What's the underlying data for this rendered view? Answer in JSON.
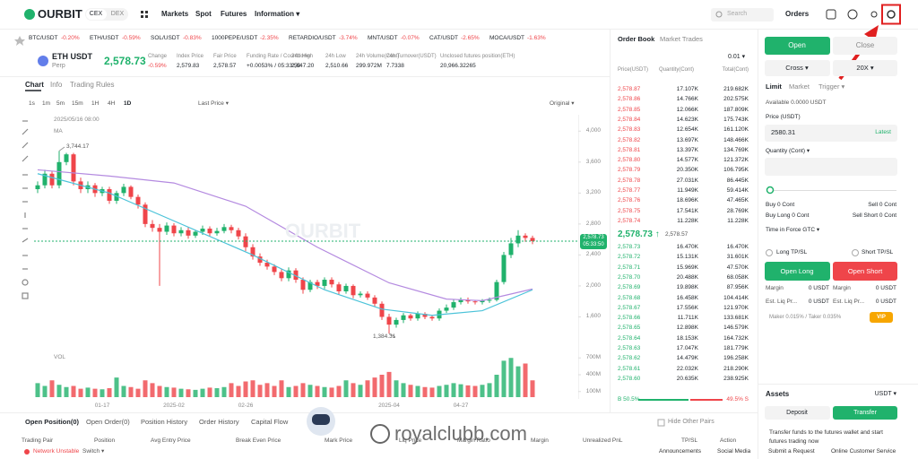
{
  "nav": {
    "logo": "OURBIT",
    "cex": "CEX",
    "dex": "DEX",
    "menu": [
      "Markets",
      "Spot",
      "Futures",
      "Information ▾"
    ],
    "search": "Search",
    "orders": "Orders"
  },
  "tickers": [
    {
      "pair": "BTC/USDT",
      "change": "-0.20%"
    },
    {
      "pair": "ETH/USDT",
      "change": "-0.59%"
    },
    {
      "pair": "SOL/USDT",
      "change": "-0.83%"
    },
    {
      "pair": "1000PEPE/USDT",
      "change": "-2.35%"
    },
    {
      "pair": "RETARDIO/USDT",
      "change": "-3.74%"
    },
    {
      "pair": "MNT/USDT",
      "change": "-0.07%"
    },
    {
      "pair": "CAT/USDT",
      "change": "-2.65%"
    },
    {
      "pair": "MOCA/USDT",
      "change": "-1.63%"
    }
  ],
  "symbol": {
    "name": "ETH USDT",
    "sub": "Perp",
    "price": "2,578.73",
    "stats": [
      {
        "label": "Change",
        "value": "-0.59%"
      },
      {
        "label": "Index Price",
        "value": "2,579.83"
      },
      {
        "label": "Fair Price",
        "value": "2,578.57"
      },
      {
        "label": "Funding Rate / Countdown",
        "value": "+0.0053% / 05:33:50"
      },
      {
        "label": "24h High",
        "value": "2,647.20"
      },
      {
        "label": "24h Low",
        "value": "2,510.66"
      },
      {
        "label": "24h Volume(Cont)",
        "value": "299.972M"
      },
      {
        "label": "24h Turnover(USDT)",
        "value": "7.7338"
      },
      {
        "label": "Unclosed futures position(ETH)",
        "value": "20,966.32265"
      }
    ]
  },
  "chart_tabs": [
    "Chart",
    "Info",
    "Trading Rules"
  ],
  "intervals": [
    "1s",
    "1m",
    "5m",
    "15m",
    "1H",
    "4H",
    "1D"
  ],
  "price_type": "Last Price ▾",
  "view_mode": "Original ▾",
  "chart_data": {
    "type": "candlestick",
    "watermark": "OURBIT",
    "annotations": {
      "date": "2025/05/16 08:00",
      "ma": "MA",
      "high_label": "3,744.17",
      "low_label": "1,384.31",
      "vol": "VOL",
      "last_price": "2,578.73",
      "countdown": "05:33:50"
    },
    "up_color": "#20b26c",
    "down_color": "#ef454a",
    "categories": [
      null,
      null,
      null,
      null,
      null,
      null,
      null,
      null,
      null,
      "01-17",
      null,
      null,
      null,
      null,
      null,
      null,
      null,
      null,
      null,
      "2025-02",
      null,
      null,
      null,
      null,
      null,
      null,
      null,
      null,
      null,
      "02-26",
      null,
      null,
      null,
      null,
      null,
      null,
      null,
      null,
      null,
      null,
      null,
      null,
      null,
      null,
      null,
      null,
      null,
      null,
      null,
      "2025-04",
      null,
      null,
      null,
      null,
      null,
      null,
      null,
      null,
      null,
      "04-27",
      null,
      null,
      null,
      null,
      null,
      null,
      null,
      null,
      null,
      null
    ],
    "open": [
      3250,
      3300,
      3450,
      3300,
      3600,
      3700,
      3350,
      3250,
      3300,
      3200,
      3250,
      3100,
      3200,
      3280,
      3150,
      3050,
      2800,
      2750,
      2700,
      2780,
      2680,
      2720,
      2650,
      2700,
      2740,
      2680,
      2710,
      2760,
      2720,
      2640,
      2500,
      2380,
      2300,
      2250,
      2180,
      2100,
      2200,
      2080,
      1950,
      2050,
      2000,
      2080,
      2020,
      1930,
      2000,
      1880,
      1900,
      1850,
      1770,
      1600,
      1500,
      1560,
      1620,
      1580,
      1640,
      1600,
      1580,
      1680,
      1720,
      1790,
      1820,
      1800,
      1790,
      1810,
      1820,
      2050,
      2400,
      2550,
      2650,
      2620
    ],
    "high": [
      3350,
      3500,
      3480,
      3744.17,
      3720,
      3720,
      3400,
      3350,
      3330,
      3280,
      3280,
      3230,
      3320,
      3300,
      3180,
      3080,
      2850,
      2800,
      2820,
      2810,
      2760,
      2760,
      2720,
      2780,
      2770,
      2750,
      2800,
      2790,
      2750,
      2680,
      2540,
      2420,
      2340,
      2280,
      2220,
      2240,
      2230,
      2110,
      2080,
      2080,
      2110,
      2110,
      2050,
      2030,
      2020,
      1930,
      1930,
      1880,
      1800,
      1640,
      1590,
      1650,
      1640,
      1670,
      1660,
      1620,
      1710,
      1760,
      1820,
      1850,
      1850,
      1820,
      1830,
      1850,
      2080,
      2440,
      2620,
      2720,
      2680,
      2650
    ],
    "low": [
      3200,
      3260,
      3260,
      3260,
      3560,
      3300,
      3200,
      3200,
      3150,
      3160,
      3060,
      3060,
      3160,
      3120,
      3000,
      2760,
      2700,
      2000,
      2660,
      2640,
      2640,
      2610,
      2620,
      2660,
      2640,
      2650,
      2680,
      2680,
      2600,
      2450,
      2340,
      2260,
      2210,
      2140,
      2060,
      2060,
      2040,
      1900,
      1920,
      1960,
      1960,
      1980,
      1890,
      1900,
      1840,
      1850,
      1820,
      1730,
      1560,
      1384.31,
      1460,
      1520,
      1550,
      1550,
      1570,
      1550,
      1550,
      1650,
      1690,
      1760,
      1770,
      1760,
      1760,
      1780,
      1800,
      2020,
      2360,
      2500,
      2570,
      2540
    ],
    "close": [
      3300,
      3450,
      3300,
      3600,
      3700,
      3350,
      3250,
      3300,
      3200,
      3250,
      3100,
      3200,
      3280,
      3150,
      3050,
      2800,
      2750,
      2700,
      2780,
      2680,
      2720,
      2650,
      2700,
      2740,
      2680,
      2710,
      2760,
      2720,
      2640,
      2500,
      2380,
      2300,
      2250,
      2180,
      2100,
      2200,
      2080,
      1950,
      2050,
      2000,
      2080,
      2020,
      1930,
      2000,
      1880,
      1900,
      1850,
      1770,
      1600,
      1500,
      1560,
      1620,
      1580,
      1640,
      1600,
      1580,
      1680,
      1720,
      1790,
      1820,
      1800,
      1790,
      1810,
      1820,
      2050,
      2400,
      2550,
      2650,
      2620,
      2578.73
    ],
    "ylim": [
      1200,
      4200
    ],
    "yticks": [
      {
        "value": 1600,
        "label": "1,600"
      },
      {
        "value": 2000,
        "label": "2,000"
      },
      {
        "value": 2400,
        "label": "2,400"
      },
      {
        "value": 2800,
        "label": "2,800"
      },
      {
        "value": 3200,
        "label": "3,200"
      },
      {
        "value": 3600,
        "label": "3,600"
      },
      {
        "value": 4000,
        "label": "4,000"
      }
    ],
    "ma_lines": [
      {
        "color": "#b48ae0",
        "x": [
          0,
          10,
          19,
          29,
          39,
          49,
          57,
          62,
          69
        ],
        "values": [
          3500,
          3420,
          3330,
          3030,
          2500,
          2040,
          1830,
          1810,
          1960
        ]
      },
      {
        "color": "#4cc3d9",
        "x": [
          0,
          10,
          20,
          30,
          40,
          48,
          55,
          62,
          69
        ],
        "values": [
          3450,
          3200,
          2800,
          2400,
          1950,
          1700,
          1620,
          1680,
          1950
        ]
      }
    ],
    "volume": {
      "values": [
        250,
        200,
        300,
        220,
        180,
        200,
        150,
        170,
        150,
        140,
        160,
        350,
        200,
        180,
        150,
        300,
        250,
        200,
        180,
        170,
        150,
        140,
        130,
        150,
        170,
        160,
        180,
        250,
        200,
        280,
        300,
        220,
        250,
        200,
        300,
        180,
        200,
        250,
        220,
        200,
        180,
        170,
        200,
        300,
        250,
        220,
        300,
        350,
        400,
        450,
        300,
        250,
        220,
        200,
        180,
        170,
        200,
        220,
        250,
        230,
        210,
        200,
        220,
        250,
        400,
        650,
        700,
        550,
        600,
        300
      ],
      "ylim": [
        0,
        800
      ],
      "yticks": [
        {
          "value": 100,
          "label": "100M"
        },
        {
          "value": 400,
          "label": "400M"
        },
        {
          "value": 700,
          "label": "700M"
        }
      ]
    }
  },
  "order_book": {
    "tabs": [
      "Order Book",
      "Market Trades"
    ],
    "step": "0.01 ▾",
    "headers": [
      "Price(USDT)",
      "Quantity(Cont)",
      "Total(Cont)"
    ],
    "asks": [
      [
        "2,578.87",
        "17.107K",
        "219.682K"
      ],
      [
        "2,578.86",
        "14.766K",
        "202.575K"
      ],
      [
        "2,578.85",
        "12.066K",
        "187.809K"
      ],
      [
        "2,578.84",
        "14.623K",
        "175.743K"
      ],
      [
        "2,578.83",
        "12.654K",
        "161.120K"
      ],
      [
        "2,578.82",
        "13.697K",
        "148.466K"
      ],
      [
        "2,578.81",
        "13.397K",
        "134.769K"
      ],
      [
        "2,578.80",
        "14.577K",
        "121.372K"
      ],
      [
        "2,578.79",
        "20.350K",
        "106.795K"
      ],
      [
        "2,578.78",
        "27.031K",
        "86.445K"
      ],
      [
        "2,578.77",
        "11.949K",
        "59.414K"
      ],
      [
        "2,578.76",
        "18.696K",
        "47.465K"
      ],
      [
        "2,578.75",
        "17.541K",
        "28.769K"
      ],
      [
        "2,578.74",
        "11.228K",
        "11.228K"
      ]
    ],
    "mid": {
      "price": "2,578.73 ↑",
      "fair": "2,578.57"
    },
    "bids": [
      [
        "2,578.73",
        "16.470K",
        "16.470K"
      ],
      [
        "2,578.72",
        "15.131K",
        "31.601K"
      ],
      [
        "2,578.71",
        "15.969K",
        "47.570K"
      ],
      [
        "2,578.70",
        "20.488K",
        "68.058K"
      ],
      [
        "2,578.69",
        "19.898K",
        "87.956K"
      ],
      [
        "2,578.68",
        "16.458K",
        "104.414K"
      ],
      [
        "2,578.67",
        "17.556K",
        "121.970K"
      ],
      [
        "2,578.66",
        "11.711K",
        "133.681K"
      ],
      [
        "2,578.65",
        "12.898K",
        "146.579K"
      ],
      [
        "2,578.64",
        "18.153K",
        "164.732K"
      ],
      [
        "2,578.63",
        "17.047K",
        "181.779K"
      ],
      [
        "2,578.62",
        "14.479K",
        "196.258K"
      ],
      [
        "2,578.61",
        "22.032K",
        "218.290K"
      ],
      [
        "2,578.60",
        "20.635K",
        "238.925K"
      ]
    ],
    "buy_ratio": "B 50.5%",
    "sell_ratio": "49.5% S"
  },
  "trade_panel": {
    "open": "Open",
    "close": "Close",
    "margin_mode": "Cross ▾",
    "leverage": "20X ▾",
    "order_types": [
      "Limit",
      "Market",
      "Trigger ▾"
    ],
    "available": "Available 0.0000 USDT",
    "price_label": "Price (USDT)",
    "price": "2580.31",
    "latest": "Latest",
    "quantity_label": "Quantity (Cont) ▾",
    "buy": "Buy 0 Cont",
    "sell": "Sell 0 Cont",
    "buy_long": "Buy Long 0 Cont",
    "sell_short": "Sell Short 0 Cont",
    "tif": "Time in Force GTC ▾",
    "long_tpsl": "Long TP/SL",
    "short_tpsl": "Short TP/SL",
    "open_long": "Open Long",
    "open_short": "Open Short",
    "info": [
      [
        "Margin",
        "0 USDT",
        "Margin",
        "0 USDT"
      ],
      [
        "Est. Liq Pr...",
        "0 USDT",
        "Est. Liq Pr...",
        "0 USDT"
      ]
    ],
    "fees": "Maker 0.015% / Taker 0.035%",
    "vip": "VIP",
    "assets": "Assets",
    "asset_currency": "USDT ▾",
    "deposit": "Deposit",
    "transfer": "Transfer",
    "transfer_note": [
      "Transfer funds to the futures wallet and start",
      "futures trading now"
    ]
  },
  "bottom": {
    "tabs": [
      "Open Position(0)",
      "Open Order(0)",
      "Position History",
      "Order History",
      "Capital Flow"
    ],
    "hide_pairs": "Hide Other Pairs",
    "columns": [
      "Trading Pair",
      "Position",
      "Avg Entry Price",
      "Break Even Price",
      "Mark Price",
      "Liq Price",
      "Margin Ratio",
      "Margin",
      "Unrealized PnL",
      "TP/SL",
      "Action"
    ]
  },
  "footer": {
    "network": "Network Unstable",
    "switch": "Switch ▾",
    "links": [
      "Announcements",
      "Social Media",
      "Submit a Request",
      "Online Customer Service"
    ]
  },
  "watermark": "royalclubb.com"
}
